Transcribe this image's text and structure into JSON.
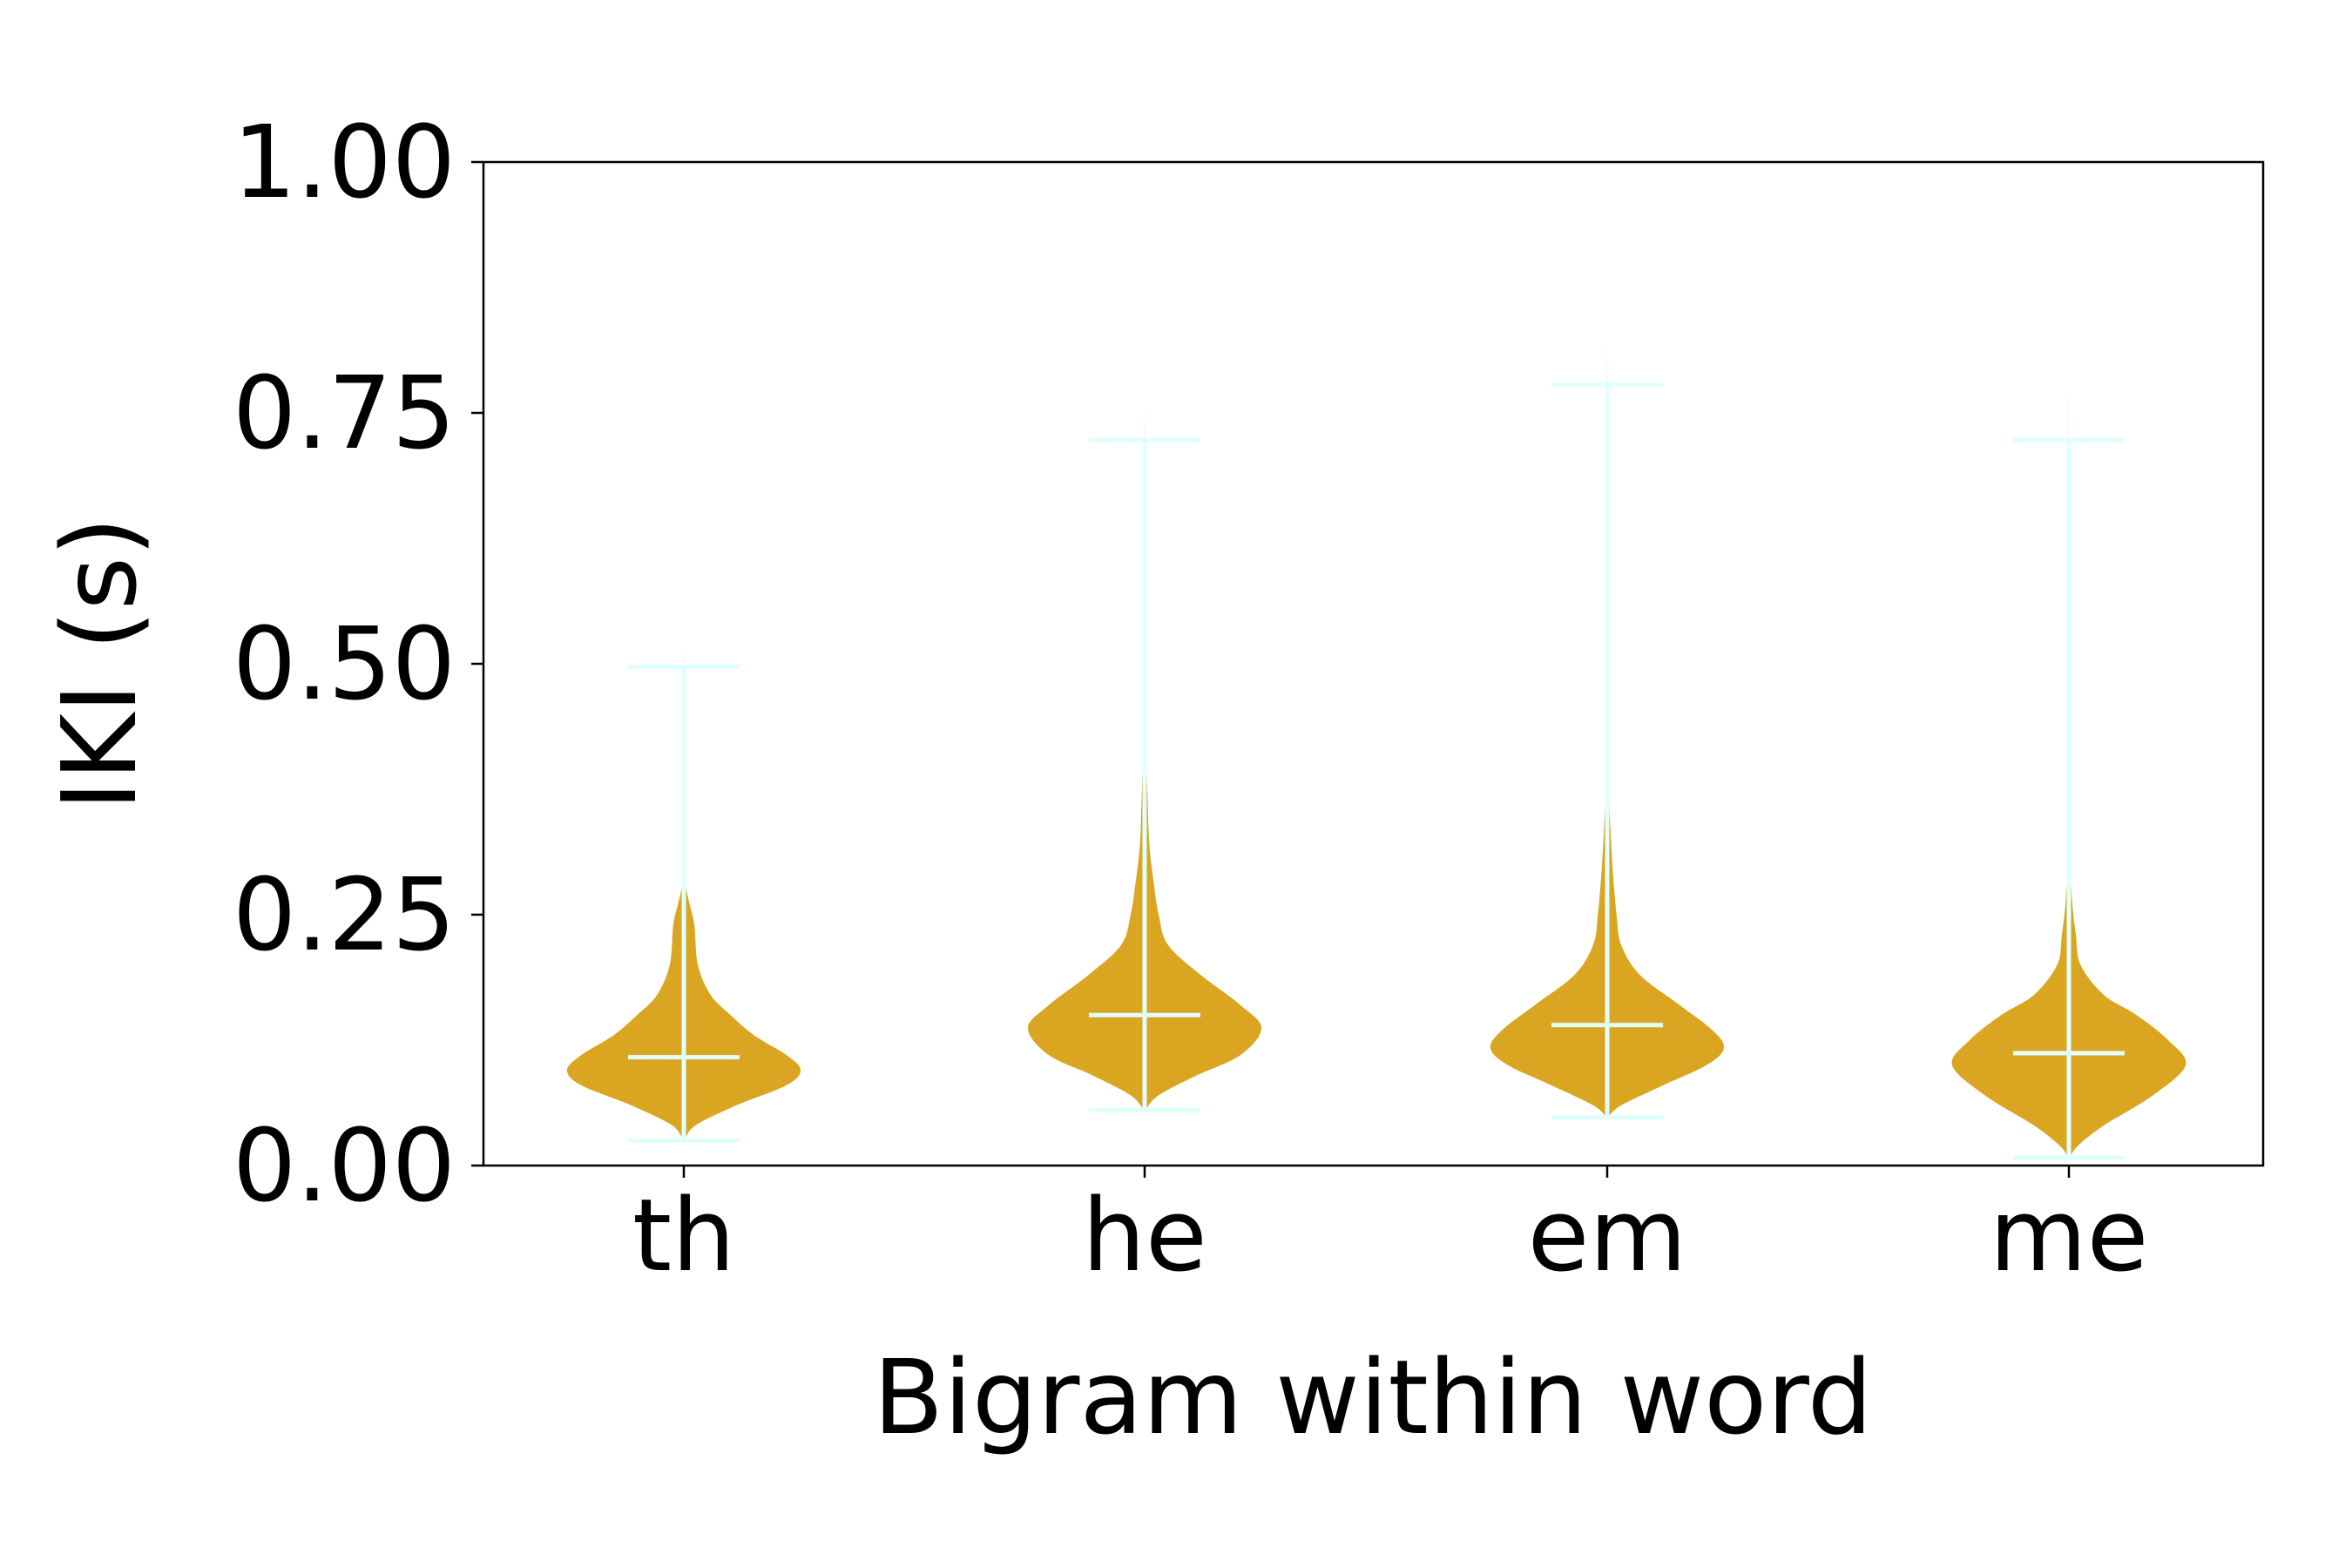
{
  "chart_data": {
    "type": "violin",
    "xlabel": "Bigram within word",
    "ylabel": "IKI (s)",
    "ylim": [
      0.0,
      1.0
    ],
    "yticks": [
      "0.00",
      "0.25",
      "0.50",
      "0.75",
      "1.00"
    ],
    "yticks_values": [
      0.0,
      0.25,
      0.5,
      0.75,
      1.0
    ],
    "categories": [
      "th",
      "he",
      "em",
      "me"
    ],
    "grid": false,
    "legend": "none",
    "colors": {
      "body": "#DAA520",
      "lines": "#E0FFFF"
    },
    "violins": [
      {
        "category": "th",
        "min": 0.025,
        "max": 0.497,
        "mean": 0.108,
        "mode": 0.095,
        "profile": [
          [
            0.025,
            0.005
          ],
          [
            0.04,
            0.1
          ],
          [
            0.06,
            0.45
          ],
          [
            0.08,
            0.88
          ],
          [
            0.095,
            1.0
          ],
          [
            0.11,
            0.88
          ],
          [
            0.13,
            0.6
          ],
          [
            0.15,
            0.4
          ],
          [
            0.17,
            0.23
          ],
          [
            0.2,
            0.12
          ],
          [
            0.24,
            0.09
          ],
          [
            0.265,
            0.04
          ],
          [
            0.28,
            0.015
          ],
          [
            0.3,
            0.006
          ],
          [
            0.35,
            0.003
          ],
          [
            0.497,
            0.001
          ]
        ]
      },
      {
        "category": "he",
        "min": 0.055,
        "max": 0.723,
        "mean": 0.15,
        "mode": 0.137,
        "profile": [
          [
            0.055,
            0.005
          ],
          [
            0.07,
            0.12
          ],
          [
            0.09,
            0.45
          ],
          [
            0.11,
            0.82
          ],
          [
            0.137,
            1.0
          ],
          [
            0.16,
            0.82
          ],
          [
            0.19,
            0.48
          ],
          [
            0.22,
            0.2
          ],
          [
            0.25,
            0.12
          ],
          [
            0.28,
            0.08
          ],
          [
            0.32,
            0.04
          ],
          [
            0.37,
            0.025
          ],
          [
            0.42,
            0.012
          ],
          [
            0.48,
            0.004
          ],
          [
            0.723,
            0.001
          ]
        ]
      },
      {
        "category": "em",
        "min": 0.048,
        "max": 0.778,
        "mean": 0.14,
        "mode": 0.117,
        "profile": [
          [
            0.048,
            0.005
          ],
          [
            0.06,
            0.12
          ],
          [
            0.08,
            0.48
          ],
          [
            0.1,
            0.85
          ],
          [
            0.117,
            1.0
          ],
          [
            0.135,
            0.9
          ],
          [
            0.16,
            0.62
          ],
          [
            0.19,
            0.28
          ],
          [
            0.22,
            0.12
          ],
          [
            0.25,
            0.08
          ],
          [
            0.29,
            0.05
          ],
          [
            0.33,
            0.03
          ],
          [
            0.38,
            0.012
          ],
          [
            0.45,
            0.004
          ],
          [
            0.778,
            0.001
          ]
        ]
      },
      {
        "category": "me",
        "min": 0.008,
        "max": 0.723,
        "mean": 0.112,
        "mode": 0.1,
        "profile": [
          [
            0.008,
            0.005
          ],
          [
            0.02,
            0.08
          ],
          [
            0.04,
            0.3
          ],
          [
            0.07,
            0.72
          ],
          [
            0.1,
            1.0
          ],
          [
            0.125,
            0.85
          ],
          [
            0.15,
            0.58
          ],
          [
            0.17,
            0.3
          ],
          [
            0.2,
            0.1
          ],
          [
            0.23,
            0.06
          ],
          [
            0.26,
            0.03
          ],
          [
            0.3,
            0.012
          ],
          [
            0.35,
            0.004
          ],
          [
            0.723,
            0.001
          ]
        ]
      }
    ]
  }
}
